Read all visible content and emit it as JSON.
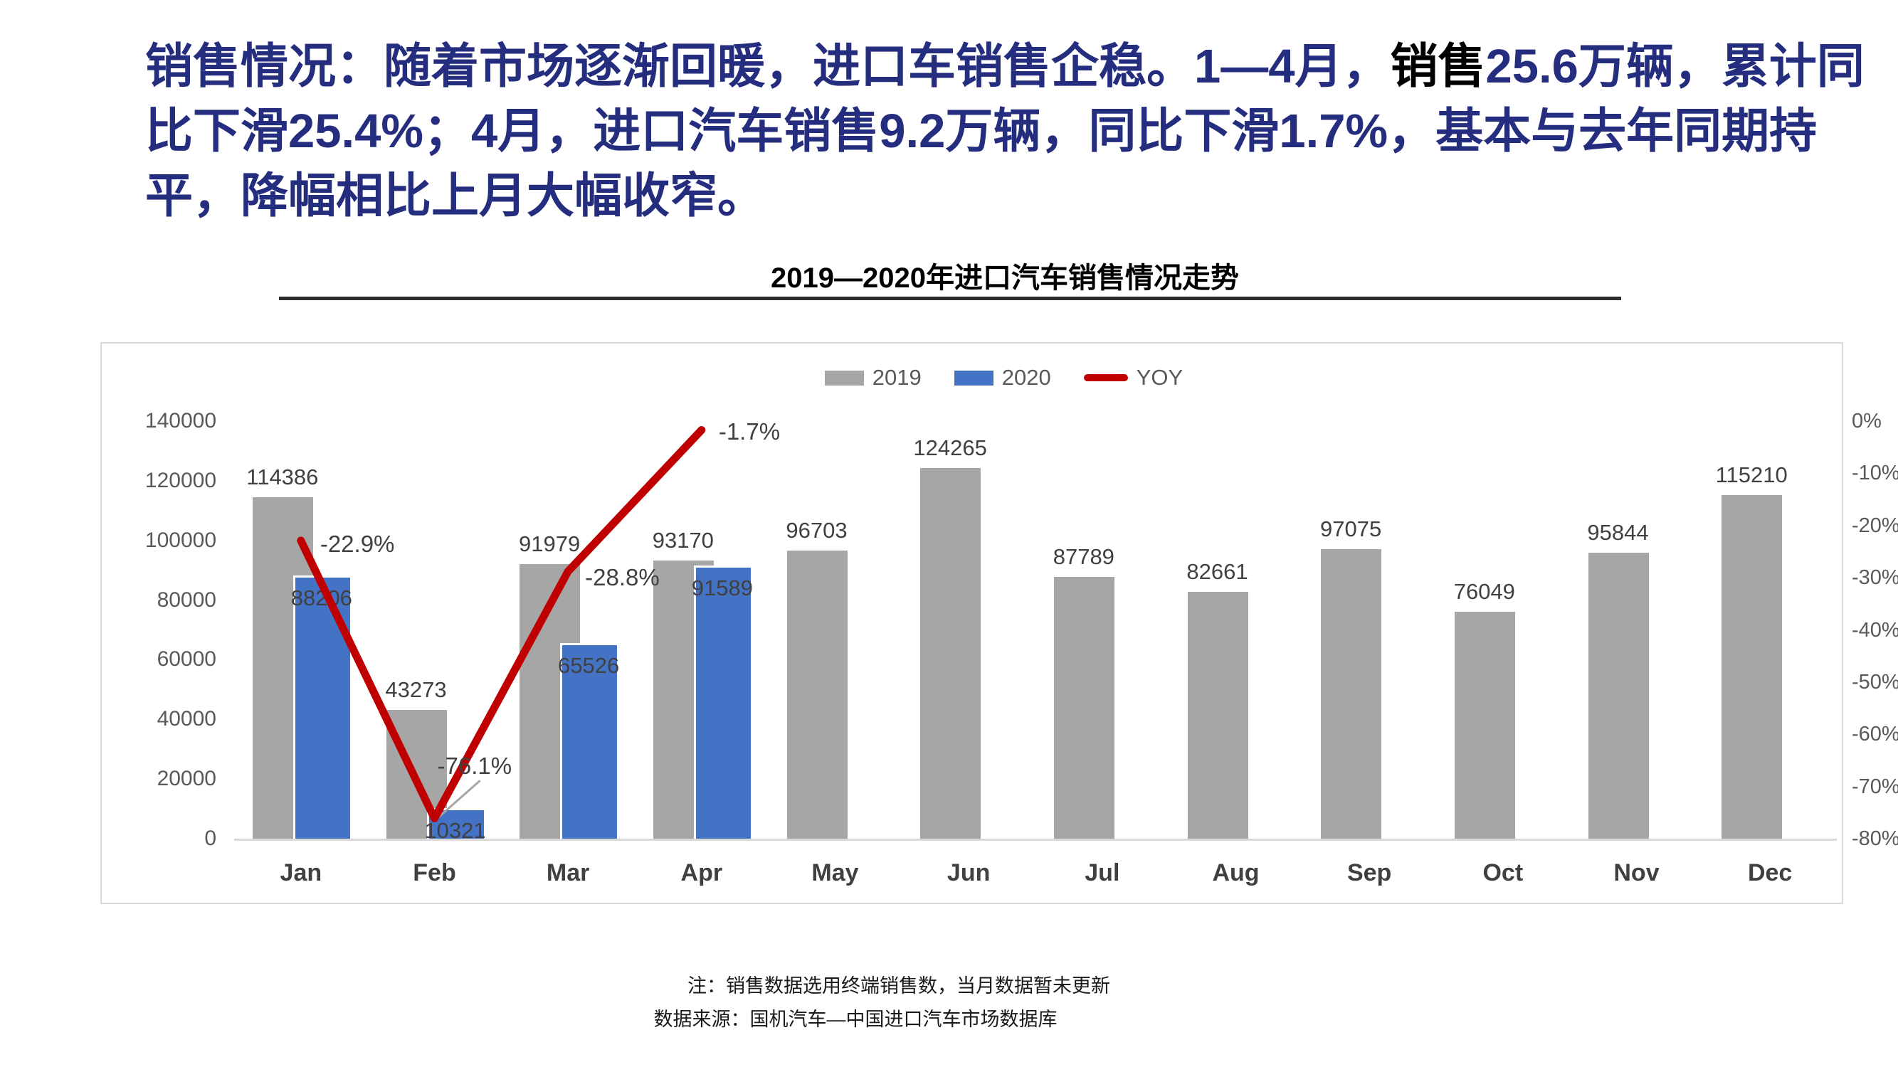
{
  "headline": {
    "part1": "销售情况：随着市场逐渐回暖，进口车销售企稳。1—4月，",
    "part2_black": "销售",
    "part3": "25.6万辆，累计同比下滑25.4%；4月，进口汽车销售9.2万辆，同比下滑1.7%，基本与去年同期持平，降幅相比上月大幅收窄。"
  },
  "chart_title": "2019—2020年进口汽车销售情况走势",
  "legend": [
    {
      "label": "2019",
      "color": "#A6A6A6",
      "swatch": "box"
    },
    {
      "label": "2020",
      "color": "#4472C4",
      "swatch": "box"
    },
    {
      "label": "YOY",
      "color": "#C00000",
      "swatch": "line"
    }
  ],
  "chart_data": {
    "type": "bar+line",
    "title": "2019—2020年进口汽车销售情况走势",
    "categories": [
      "Jan",
      "Feb",
      "Mar",
      "Apr",
      "May",
      "Jun",
      "Jul",
      "Aug",
      "Sep",
      "Oct",
      "Nov",
      "Dec"
    ],
    "series": [
      {
        "name": "2019",
        "type": "bar",
        "color": "#A6A6A6",
        "values": [
          114386,
          43273,
          91979,
          93170,
          96703,
          124265,
          87789,
          82661,
          97075,
          76049,
          95844,
          115210
        ]
      },
      {
        "name": "2020",
        "type": "bar",
        "color": "#4472C4",
        "values": [
          88206,
          10321,
          65526,
          91589,
          null,
          null,
          null,
          null,
          null,
          null,
          null,
          null
        ]
      },
      {
        "name": "YOY",
        "type": "line",
        "color": "#C00000",
        "axis": "right",
        "values_percent": [
          -22.9,
          -76.1,
          -28.8,
          -1.7,
          null,
          null,
          null,
          null,
          null,
          null,
          null,
          null
        ],
        "point_labels": [
          "-22.9%",
          "-76.1%",
          "-28.8%",
          "-1.7%"
        ]
      }
    ],
    "left_axis": {
      "min": 0,
      "max": 140000,
      "step": 20000,
      "tick_labels": [
        "140000",
        "120000",
        "100000",
        "80000",
        "60000",
        "40000",
        "20000",
        "0"
      ]
    },
    "right_axis": {
      "min": -80,
      "max": 0,
      "step": 10,
      "tick_labels": [
        "0%",
        "-10%",
        "-20%",
        "-30%",
        "-40%",
        "-50%",
        "-60%",
        "-70%",
        "-80%"
      ]
    },
    "grid": false,
    "legend_position": "top-center"
  },
  "footnotes": {
    "note": "注：销售数据选用终端销售数，当月数据暂未更新",
    "source": "数据来源：国机汽车—中国进口汽车市场数据库"
  },
  "colors": {
    "headline_text": "#252D7F",
    "bar_2019": "#A6A6A6",
    "bar_2020": "#4472C4",
    "yoy_line": "#C00000",
    "axis_text": "#595959",
    "data_label_text": "#404040",
    "axis_line": "#D9D9D9",
    "frame_border": "#D9D9D9"
  }
}
